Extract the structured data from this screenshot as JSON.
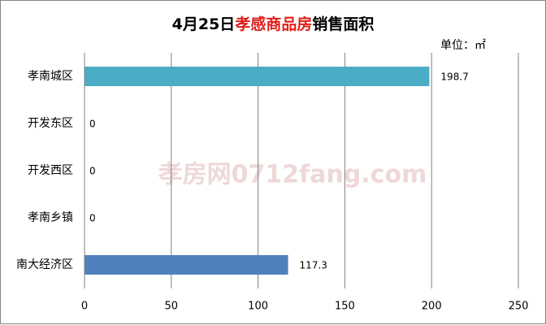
{
  "chart_data": {
    "type": "bar",
    "orientation": "horizontal",
    "title_parts": [
      {
        "text": "4月25日",
        "color": "#000000"
      },
      {
        "text": "孝感商品房",
        "color": "#e0201b"
      },
      {
        "text": "销售面积",
        "color": "#000000"
      }
    ],
    "unit_label": "单位：㎡",
    "watermark": "孝房网0712fang.com",
    "categories": [
      "孝南城区",
      "开发东区",
      "开发西区",
      "孝南乡镇",
      "南大经济区"
    ],
    "values": [
      198.7,
      0,
      0,
      0,
      117.3
    ],
    "colors": [
      "#4bacc6",
      "#4bacc6",
      "#4bacc6",
      "#4bacc6",
      "#4f81bd"
    ],
    "xlim": [
      0,
      250
    ],
    "xticks": [
      0,
      50,
      100,
      150,
      200,
      250
    ],
    "grid": true
  }
}
